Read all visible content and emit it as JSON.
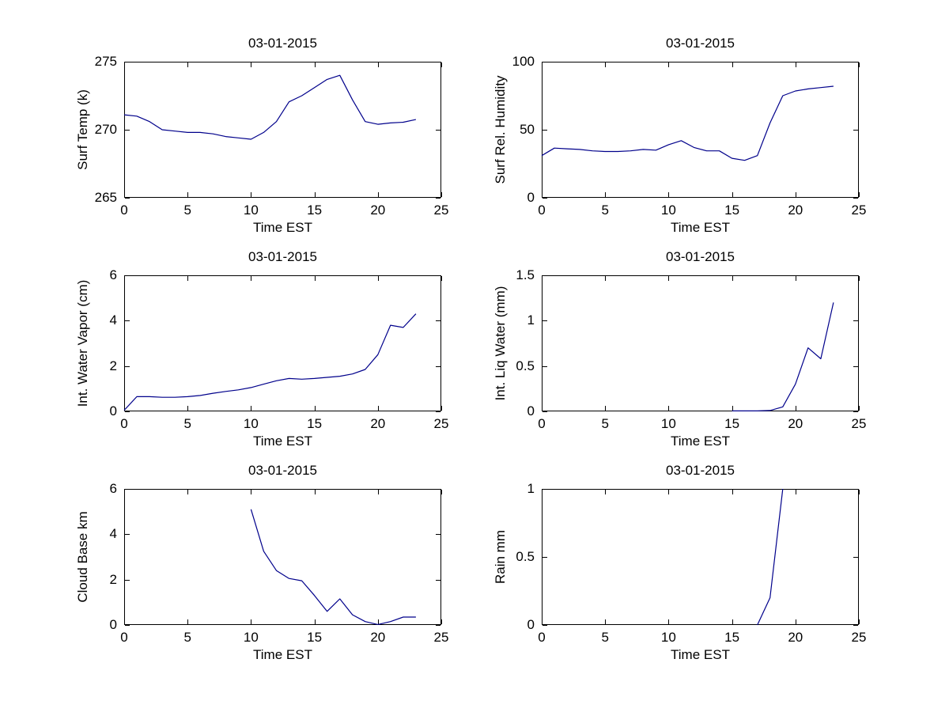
{
  "figure": {
    "bg_color": "#ffffff",
    "axes_color": "#000000",
    "line_color": "#00008B",
    "text_color": "#000000",
    "common_date_title": "03-01-2015",
    "common_x_axis_label": "Time EST"
  },
  "chart_data": [
    {
      "id": "surf-temp",
      "type": "line",
      "title": "03-01-2015",
      "xlabel": "Time EST",
      "ylabel": "Surf Temp (k)",
      "xlim": [
        0,
        25
      ],
      "ylim": [
        265,
        275
      ],
      "xticks": [
        0,
        5,
        10,
        15,
        20,
        25
      ],
      "yticks": [
        265,
        270,
        275
      ],
      "grid": false,
      "legend": null,
      "x": [
        0,
        1,
        2,
        3,
        4,
        5,
        6,
        7,
        8,
        9,
        10,
        11,
        12,
        13,
        14,
        15,
        16,
        17,
        18,
        19,
        20,
        21,
        22,
        23
      ],
      "y": [
        271.1,
        271.0,
        270.6,
        270.0,
        269.9,
        269.8,
        269.8,
        269.7,
        269.5,
        269.4,
        269.3,
        269.8,
        270.6,
        272.05,
        272.5,
        273.1,
        273.7,
        274.0,
        272.2,
        270.6,
        270.4,
        270.5,
        270.55,
        270.75
      ]
    },
    {
      "id": "surf-rel-humidity",
      "type": "line",
      "title": "03-01-2015",
      "xlabel": "Time EST",
      "ylabel": "Surf Rel. Humidity",
      "xlim": [
        0,
        25
      ],
      "ylim": [
        0,
        100
      ],
      "xticks": [
        0,
        5,
        10,
        15,
        20,
        25
      ],
      "yticks": [
        0,
        50,
        100
      ],
      "grid": false,
      "legend": null,
      "x": [
        0,
        1,
        2,
        3,
        4,
        5,
        6,
        7,
        8,
        9,
        10,
        11,
        12,
        13,
        14,
        15,
        16,
        17,
        18,
        19,
        20,
        21,
        22,
        23
      ],
      "y": [
        31,
        36.5,
        36,
        35.5,
        34.5,
        34,
        34,
        34.5,
        35.5,
        35,
        39,
        42,
        37,
        34.5,
        34.5,
        29,
        27.5,
        31,
        55,
        75,
        78.5,
        80,
        81,
        82
      ]
    },
    {
      "id": "int-water-vapor",
      "type": "line",
      "title": "03-01-2015",
      "xlabel": "Time EST",
      "ylabel": "Int. Water Vapor (cm)",
      "xlim": [
        0,
        25
      ],
      "ylim": [
        0,
        6
      ],
      "xticks": [
        0,
        5,
        10,
        15,
        20,
        25
      ],
      "yticks": [
        0,
        2,
        4,
        6
      ],
      "grid": false,
      "legend": null,
      "x": [
        0,
        1,
        2,
        3,
        4,
        5,
        6,
        7,
        8,
        9,
        10,
        11,
        12,
        13,
        14,
        15,
        16,
        17,
        18,
        19,
        20,
        21,
        22,
        23
      ],
      "y": [
        0.05,
        0.65,
        0.65,
        0.62,
        0.62,
        0.65,
        0.7,
        0.8,
        0.88,
        0.95,
        1.05,
        1.2,
        1.35,
        1.45,
        1.42,
        1.45,
        1.5,
        1.55,
        1.65,
        1.85,
        2.5,
        3.8,
        3.7,
        4.3
      ]
    },
    {
      "id": "int-liq-water",
      "type": "line",
      "title": "03-01-2015",
      "xlabel": "Time EST",
      "ylabel": "Int. Liq Water (mm)",
      "xlim": [
        0,
        25
      ],
      "ylim": [
        0,
        1.5
      ],
      "xticks": [
        0,
        5,
        10,
        15,
        20,
        25
      ],
      "yticks": [
        0,
        0.5,
        1,
        1.5
      ],
      "grid": false,
      "legend": null,
      "x": [
        15,
        16,
        17,
        18,
        19,
        20,
        21,
        22,
        23
      ],
      "y": [
        0.005,
        0.005,
        0.005,
        0.01,
        0.05,
        0.3,
        0.7,
        0.58,
        1.2
      ]
    },
    {
      "id": "cloud-base",
      "type": "line",
      "title": "03-01-2015",
      "xlabel": "Time EST",
      "ylabel": "Cloud Base km",
      "xlim": [
        0,
        25
      ],
      "ylim": [
        0,
        6
      ],
      "xticks": [
        0,
        5,
        10,
        15,
        20,
        25
      ],
      "yticks": [
        0,
        2,
        4,
        6
      ],
      "grid": false,
      "legend": null,
      "x": [
        10,
        11,
        12,
        13,
        14,
        15,
        16,
        17,
        18,
        19,
        20,
        21,
        22,
        23
      ],
      "y": [
        5.1,
        3.25,
        2.4,
        2.05,
        1.95,
        1.3,
        0.6,
        1.15,
        0.45,
        0.15,
        0.02,
        0.15,
        0.35,
        0.35
      ]
    },
    {
      "id": "rain",
      "type": "line",
      "title": "03-01-2015",
      "xlabel": "Time EST",
      "ylabel": "Rain mm",
      "xlim": [
        0,
        25
      ],
      "ylim": [
        0,
        1
      ],
      "xticks": [
        0,
        5,
        10,
        15,
        20,
        25
      ],
      "yticks": [
        0,
        0.5,
        1
      ],
      "grid": false,
      "legend": null,
      "x": [
        17,
        18,
        19
      ],
      "y": [
        0,
        0.2,
        1.0
      ]
    }
  ]
}
